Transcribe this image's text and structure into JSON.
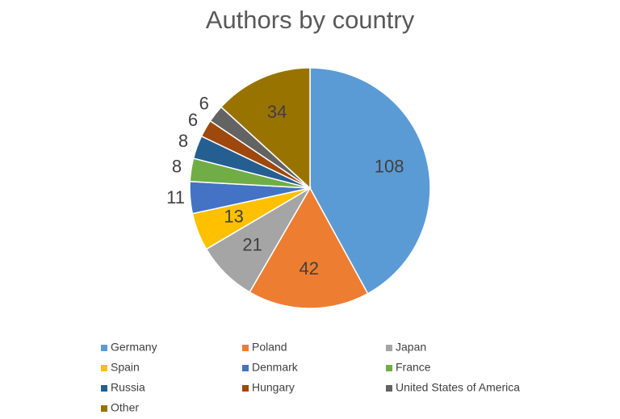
{
  "chart_data": {
    "type": "pie",
    "title": "Authors by country",
    "categories": [
      "Germany",
      "Poland",
      "Japan",
      "Spain",
      "Denmark",
      "France",
      "Russia",
      "Hungary",
      "United States of America",
      "Other"
    ],
    "values": [
      108,
      42,
      21,
      13,
      11,
      8,
      8,
      6,
      6,
      34
    ],
    "colors": [
      "#5b9bd5",
      "#ed7d31",
      "#a5a5a5",
      "#ffc000",
      "#4472c4",
      "#70ad47",
      "#255e91",
      "#9e480e",
      "#636363",
      "#997300"
    ],
    "legend": "bottom"
  }
}
